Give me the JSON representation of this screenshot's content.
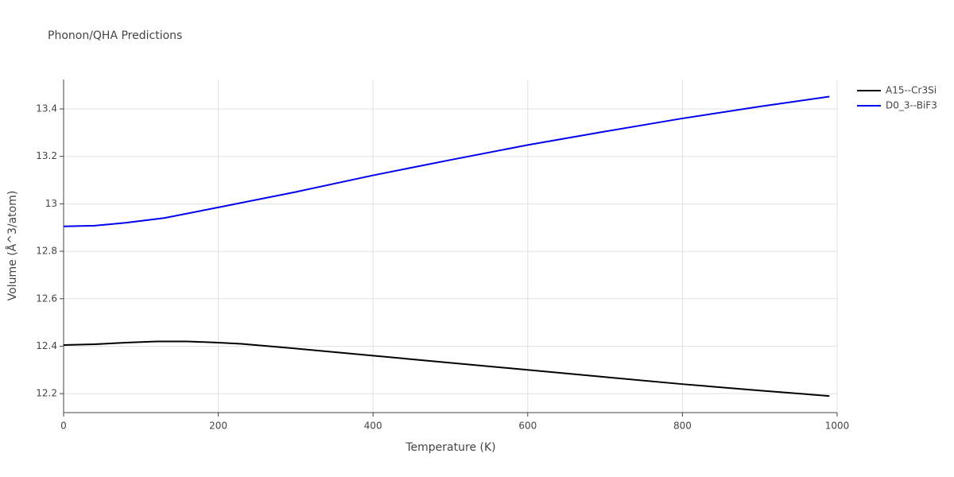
{
  "chart_data": {
    "type": "line",
    "title": "Phonon/QHA Predictions",
    "x_label": "Temperature (K)",
    "y_label": "Volume (Å^3/atom)",
    "xlim": [
      0,
      1000
    ],
    "xticks": [
      0,
      200,
      400,
      600,
      800,
      1000
    ],
    "ylim": [
      12.12,
      13.524
    ],
    "yticks": [
      12.2,
      12.4,
      12.6,
      12.8,
      13,
      13.2,
      13.4
    ],
    "grid": true,
    "legend": "top-right",
    "series": [
      {
        "name": "A15--Cr3Si",
        "color": "#000000",
        "x": [
          0,
          40,
          80,
          120,
          160,
          200,
          230,
          300,
          400,
          500,
          600,
          700,
          800,
          900,
          990
        ],
        "values": [
          12.405,
          12.408,
          12.415,
          12.42,
          12.42,
          12.415,
          12.41,
          12.39,
          12.36,
          12.33,
          12.3,
          12.27,
          12.24,
          12.213,
          12.19
        ]
      },
      {
        "name": "D0_3--BiF3",
        "color": "#0000ee",
        "x": [
          0,
          40,
          80,
          130,
          200,
          300,
          400,
          500,
          600,
          700,
          800,
          900,
          990
        ],
        "values": [
          12.905,
          12.908,
          12.92,
          12.94,
          12.985,
          13.05,
          13.12,
          13.185,
          13.248,
          13.305,
          13.36,
          13.41,
          13.452
        ]
      }
    ]
  }
}
